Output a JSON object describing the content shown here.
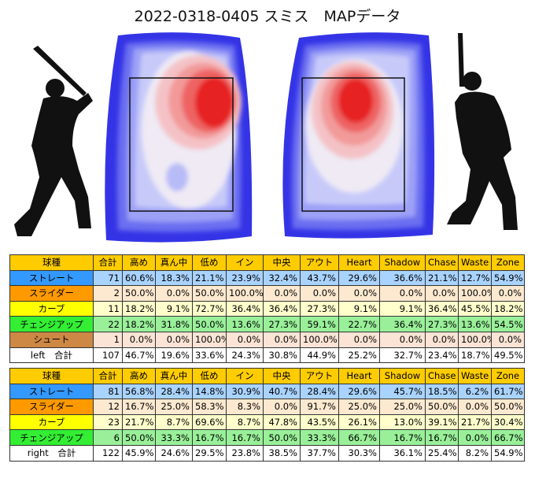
{
  "title": "2022-0318-0405 スミス　MAPデータ",
  "tables": [
    {
      "header": [
        "球種",
        "合計",
        "高め",
        "真ん中",
        "低め",
        "イン",
        "中央",
        "アウト",
        "Heart",
        "Shadow",
        "Chase",
        "Waste",
        "Zone"
      ],
      "rows": [
        [
          "ストレート",
          "71",
          "60.6%",
          "18.3%",
          "21.1%",
          "23.9%",
          "32.4%",
          "43.7%",
          "29.6%",
          "36.6%",
          "21.1%",
          "12.7%",
          "54.9%"
        ],
        [
          "スライダー",
          "2",
          "50.0%",
          "0.0%",
          "50.0%",
          "100.0%",
          "0.0%",
          "0.0%",
          "0.0%",
          "0.0%",
          "0.0%",
          "100.0%",
          "0.0%"
        ],
        [
          "カーブ",
          "11",
          "18.2%",
          "9.1%",
          "72.7%",
          "36.4%",
          "36.4%",
          "27.3%",
          "9.1%",
          "9.1%",
          "36.4%",
          "45.5%",
          "18.2%"
        ],
        [
          "チェンジアップ",
          "22",
          "18.2%",
          "31.8%",
          "50.0%",
          "13.6%",
          "27.3%",
          "59.1%",
          "22.7%",
          "36.4%",
          "27.3%",
          "13.6%",
          "54.5%"
        ],
        [
          "シュート",
          "1",
          "0.0%",
          "0.0%",
          "100.0%",
          "0.0%",
          "0.0%",
          "100.0%",
          "0.0%",
          "0.0%",
          "0.0%",
          "100.0%",
          "0.0%"
        ],
        [
          "left　合計",
          "107",
          "46.7%",
          "19.6%",
          "33.6%",
          "24.3%",
          "30.8%",
          "44.9%",
          "25.2%",
          "32.7%",
          "23.4%",
          "18.7%",
          "49.5%"
        ]
      ]
    },
    {
      "header": [
        "球種",
        "合計",
        "高め",
        "真ん中",
        "低め",
        "イン",
        "中央",
        "アウト",
        "Heart",
        "Shadow",
        "Chase",
        "Waste",
        "Zone"
      ],
      "rows": [
        [
          "ストレート",
          "81",
          "56.8%",
          "28.4%",
          "14.8%",
          "30.9%",
          "40.7%",
          "28.4%",
          "29.6%",
          "45.7%",
          "18.5%",
          "6.2%",
          "61.7%"
        ],
        [
          "スライダー",
          "12",
          "16.7%",
          "25.0%",
          "58.3%",
          "8.3%",
          "0.0%",
          "91.7%",
          "25.0%",
          "25.0%",
          "50.0%",
          "0.0%",
          "50.0%"
        ],
        [
          "カーブ",
          "23",
          "21.7%",
          "8.7%",
          "69.6%",
          "8.7%",
          "47.8%",
          "43.5%",
          "26.1%",
          "13.0%",
          "39.1%",
          "21.7%",
          "30.4%"
        ],
        [
          "チェンジアップ",
          "6",
          "50.0%",
          "33.3%",
          "16.7%",
          "16.7%",
          "50.0%",
          "33.3%",
          "66.7%",
          "16.7%",
          "16.7%",
          "0.0%",
          "66.7%"
        ],
        [
          "right　合計",
          "122",
          "45.9%",
          "24.6%",
          "29.5%",
          "23.8%",
          "38.5%",
          "37.7%",
          "30.3%",
          "36.1%",
          "25.4%",
          "8.2%",
          "54.9%"
        ]
      ]
    }
  ]
}
